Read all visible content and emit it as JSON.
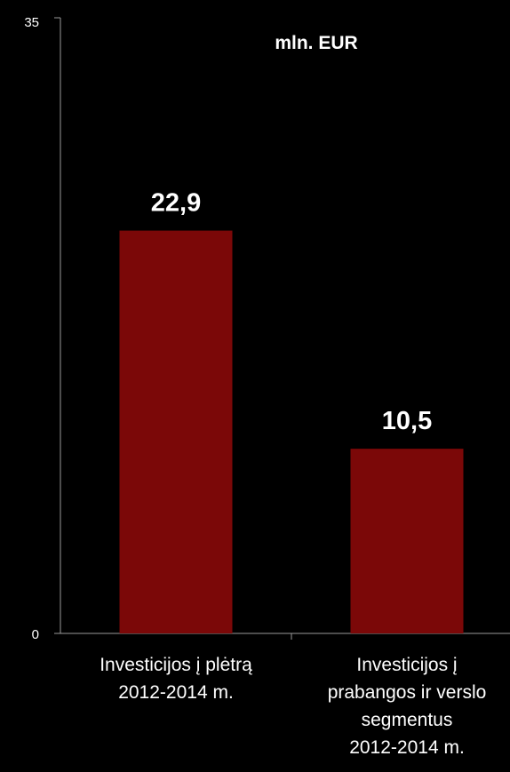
{
  "chart_data": {
    "type": "bar",
    "unit_label": "mln. EUR",
    "categories": [
      [
        "Investicijos į plėtrą",
        "2012-2014 m."
      ],
      [
        "Investicijos į",
        "prabangos ir verslo",
        "segmentus",
        "2012-2014 m."
      ]
    ],
    "values": [
      22.9,
      10.5
    ],
    "value_labels": [
      "22,9",
      "10,5"
    ],
    "ylim": [
      0,
      35
    ],
    "yticks": [
      "0",
      "35"
    ],
    "grid": false,
    "colors": {
      "bar": "#7b0808",
      "background": "#000000",
      "text": "#ffffff",
      "axis": "#9a9a9a"
    }
  }
}
